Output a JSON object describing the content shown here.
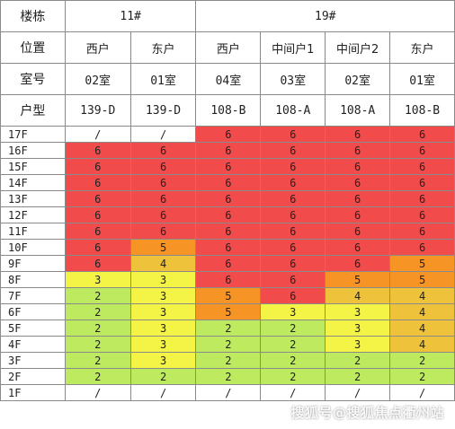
{
  "header": {
    "row_labels": [
      "楼栋",
      "位置",
      "室号",
      "户型"
    ],
    "buildings": [
      "11#",
      "19#"
    ],
    "positions": [
      "西户",
      "东户",
      "西户",
      "中间户1",
      "中间户2",
      "东户"
    ],
    "rooms": [
      "02室",
      "01室",
      "04室",
      "03室",
      "02室",
      "01室"
    ],
    "types": [
      "139-D",
      "139-D",
      "108-B",
      "108-A",
      "108-A",
      "108-B"
    ]
  },
  "floors": [
    {
      "floor": "17F",
      "values": [
        "/",
        "/",
        "6",
        "6",
        "6",
        "6"
      ]
    },
    {
      "floor": "16F",
      "values": [
        "6",
        "6",
        "6",
        "6",
        "6",
        "6"
      ]
    },
    {
      "floor": "15F",
      "values": [
        "6",
        "6",
        "6",
        "6",
        "6",
        "6"
      ]
    },
    {
      "floor": "14F",
      "values": [
        "6",
        "6",
        "6",
        "6",
        "6",
        "6"
      ]
    },
    {
      "floor": "13F",
      "values": [
        "6",
        "6",
        "6",
        "6",
        "6",
        "6"
      ]
    },
    {
      "floor": "12F",
      "values": [
        "6",
        "6",
        "6",
        "6",
        "6",
        "6"
      ]
    },
    {
      "floor": "11F",
      "values": [
        "6",
        "6",
        "6",
        "6",
        "6",
        "6"
      ]
    },
    {
      "floor": "10F",
      "values": [
        "6",
        "5",
        "6",
        "6",
        "6",
        "6"
      ]
    },
    {
      "floor": "9F",
      "values": [
        "6",
        "4",
        "6",
        "6",
        "6",
        "5"
      ]
    },
    {
      "floor": "8F",
      "values": [
        "3",
        "3",
        "6",
        "6",
        "5",
        "5"
      ]
    },
    {
      "floor": "7F",
      "values": [
        "2",
        "3",
        "5",
        "6",
        "4",
        "4"
      ]
    },
    {
      "floor": "6F",
      "values": [
        "2",
        "3",
        "5",
        "3",
        "3",
        "4"
      ]
    },
    {
      "floor": "5F",
      "values": [
        "2",
        "3",
        "2",
        "2",
        "3",
        "4"
      ]
    },
    {
      "floor": "4F",
      "values": [
        "2",
        "3",
        "2",
        "2",
        "3",
        "4"
      ]
    },
    {
      "floor": "3F",
      "values": [
        "2",
        "3",
        "2",
        "2",
        "2",
        "2"
      ]
    },
    {
      "floor": "2F",
      "values": [
        "2",
        "2",
        "2",
        "2",
        "2",
        "2"
      ]
    },
    {
      "floor": "1F",
      "values": [
        "/",
        "/",
        "/",
        "/",
        "/",
        "/"
      ]
    }
  ],
  "colors": {
    "6": "#f24b4b",
    "5": "#f79426",
    "4": "#eec23a",
    "3": "#f4f447",
    "2": "#bdea5e",
    "/": "#ffffff"
  },
  "watermark": "搜狐号@搜狐焦点衢州站"
}
